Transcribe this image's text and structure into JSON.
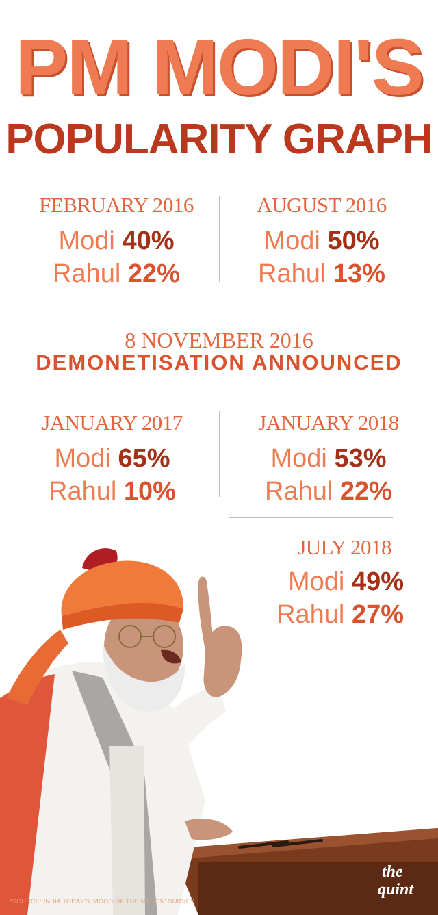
{
  "title": {
    "line1": "PM MODI'S",
    "line2": "POPULARITY GRAPH"
  },
  "polls": [
    {
      "period": "FEBRUARY 2016",
      "modi_label": "Modi",
      "modi": "40%",
      "rahul_label": "Rahul",
      "rahul": "22%"
    },
    {
      "period": "AUGUST 2016",
      "modi_label": "Modi",
      "modi": "50%",
      "rahul_label": "Rahul",
      "rahul": "13%"
    },
    {
      "period": "JANUARY 2017",
      "modi_label": "Modi",
      "modi": "65%",
      "rahul_label": "Rahul",
      "rahul": "10%"
    },
    {
      "period": "JANUARY 2018",
      "modi_label": "Modi",
      "modi": "53%",
      "rahul_label": "Rahul",
      "rahul": "22%"
    },
    {
      "period": "JULY 2018",
      "modi_label": "Modi",
      "modi": "49%",
      "rahul_label": "Rahul",
      "rahul": "27%"
    }
  ],
  "event": {
    "date": "8 NOVEMBER 2016",
    "label": "DEMONETISATION ANNOUNCED"
  },
  "source": "*SOURCE: INDIA TODAY'S 'MOOD OF THE NATION' SURVEY",
  "logo": {
    "line1": "the",
    "line2": "quint"
  },
  "colors": {
    "title_light": "#ef7b52",
    "title_dark": "#b9381e",
    "modi_value": "#a52f17",
    "rahul_value": "#d8532e",
    "period_text": "#e2653d"
  }
}
